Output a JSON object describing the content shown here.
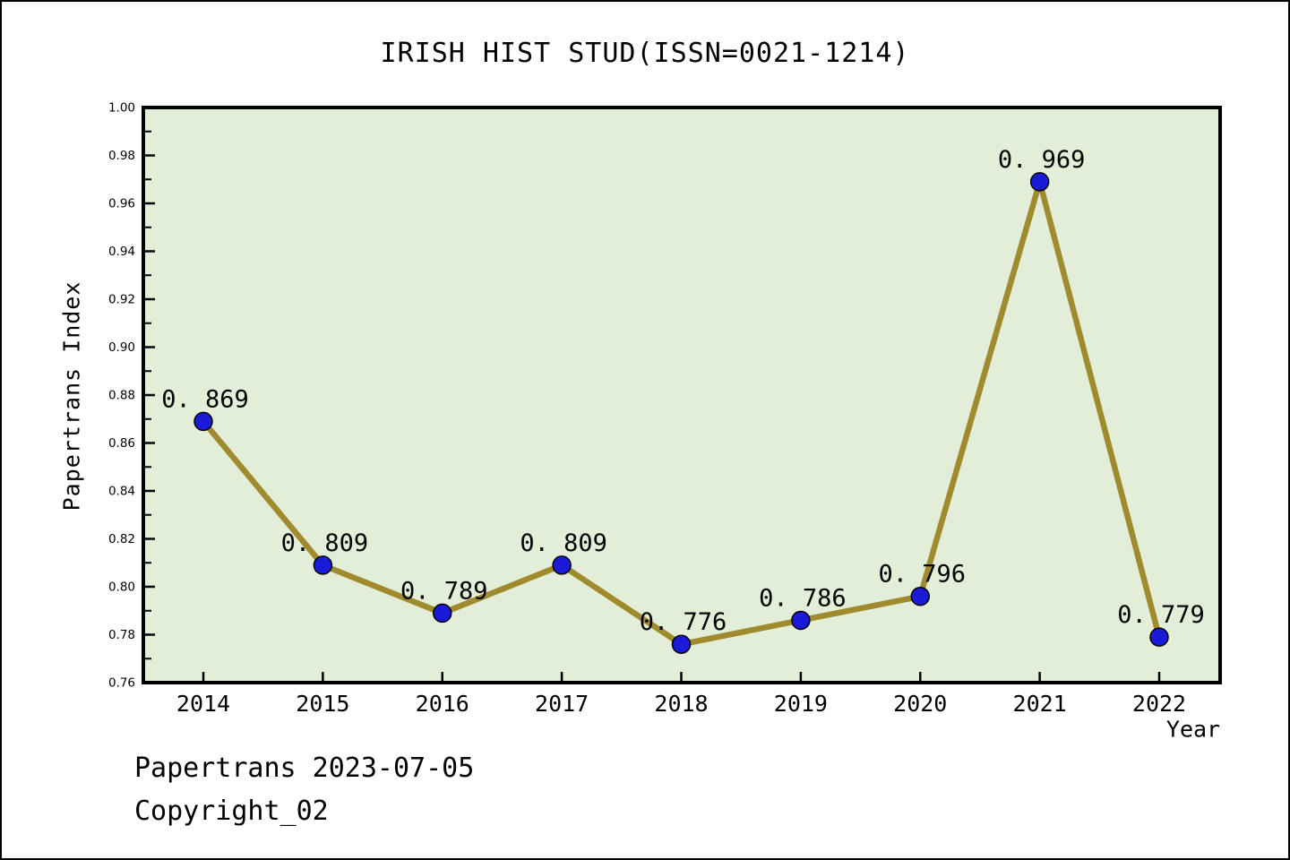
{
  "title": "IRISH HIST STUD(ISSN=0021-1214)",
  "footer": {
    "line1": "Papertrans 2023-07-05",
    "line2": "Copyright_02"
  },
  "chart_data": {
    "type": "line",
    "title": "IRISH HIST STUD(ISSN=0021-1214)",
    "xlabel": "Year",
    "ylabel": "Papertrans Index",
    "x": [
      2014,
      2015,
      2016,
      2017,
      2018,
      2019,
      2020,
      2021,
      2022
    ],
    "values": [
      0.869,
      0.809,
      0.789,
      0.809,
      0.776,
      0.786,
      0.796,
      0.969,
      0.779
    ],
    "point_labels": [
      "0.869",
      "0.809",
      "0.789",
      "0.809",
      "0.776",
      "0.786",
      "0.796",
      "0.969",
      "0.779"
    ],
    "ylim": [
      0.76,
      1.0
    ],
    "ytick_step": 0.02,
    "yminor_step": 0.01,
    "ytick_labels": [
      "0.76",
      "0.78",
      "0.80",
      "0.82",
      "0.84",
      "0.86",
      "0.88",
      "0.90",
      "0.92",
      "0.94",
      "0.96",
      "0.98",
      "1.00"
    ],
    "grid": false,
    "legend": null,
    "colors": {
      "line": "#a08a2e",
      "marker_fill": "#1a1ad8",
      "marker_edge": "#000000",
      "plot_bg": "#e3eed9",
      "frame": "#000000",
      "text": "#000000",
      "page_bg": "#ffffff"
    }
  }
}
